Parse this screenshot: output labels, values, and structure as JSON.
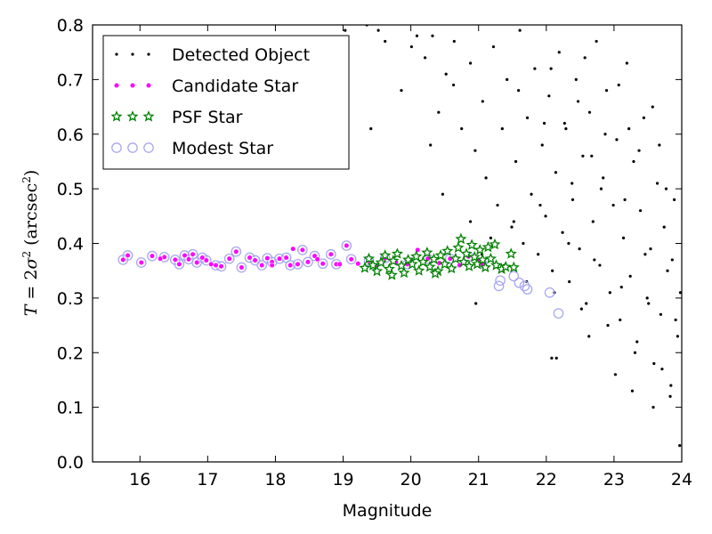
{
  "chart_data": {
    "type": "scatter",
    "xlabel": "Magnitude",
    "ylabel_parts": [
      "T",
      " = 2",
      "σ",
      "2",
      " (arcsec",
      "2",
      ")"
    ],
    "xlim": [
      15.3,
      24.0
    ],
    "ylim": [
      0.0,
      0.8
    ],
    "xticks": [
      16,
      17,
      18,
      19,
      20,
      21,
      22,
      23,
      24
    ],
    "yticks": [
      0.0,
      0.1,
      0.2,
      0.3,
      0.4,
      0.5,
      0.6,
      0.7,
      0.8
    ],
    "grid": false,
    "legend_position": "top-left",
    "legend": [
      {
        "label": "Detected Object",
        "series": "detected"
      },
      {
        "label": "Candidate Star",
        "series": "candidate"
      },
      {
        "label": "PSF Star",
        "series": "psf"
      },
      {
        "label": "Modest Star",
        "series": "modest"
      }
    ],
    "colors": {
      "detected": "#000000",
      "candidate": "#ff00ff",
      "psf": "#008000",
      "modest": "#a8a8f0"
    },
    "series": [
      {
        "name": "Detected Object",
        "key": "detected",
        "points": [
          [
            20.01,
            0.76
          ],
          [
            20.21,
            0.74
          ],
          [
            20.32,
            0.78
          ],
          [
            20.52,
            0.71
          ],
          [
            20.41,
            0.64
          ],
          [
            20.63,
            0.69
          ],
          [
            20.75,
            0.61
          ],
          [
            20.88,
            0.73
          ],
          [
            20.95,
            0.57
          ],
          [
            21.06,
            0.66
          ],
          [
            21.11,
            0.52
          ],
          [
            21.22,
            0.76
          ],
          [
            21.28,
            0.47
          ],
          [
            21.35,
            0.61
          ],
          [
            21.42,
            0.7
          ],
          [
            21.49,
            0.43
          ],
          [
            21.55,
            0.55
          ],
          [
            21.61,
            0.79
          ],
          [
            21.66,
            0.4
          ],
          [
            21.72,
            0.63
          ],
          [
            21.78,
            0.49
          ],
          [
            21.83,
            0.72
          ],
          [
            21.88,
            0.38
          ],
          [
            21.94,
            0.58
          ],
          [
            21.99,
            0.45
          ],
          [
            22.04,
            0.67
          ],
          [
            22.09,
            0.35
          ],
          [
            22.14,
            0.53
          ],
          [
            22.19,
            0.75
          ],
          [
            22.24,
            0.42
          ],
          [
            22.29,
            0.61
          ],
          [
            22.34,
            0.33
          ],
          [
            22.39,
            0.48
          ],
          [
            22.44,
            0.7
          ],
          [
            22.49,
            0.39
          ],
          [
            22.54,
            0.56
          ],
          [
            22.59,
            0.29
          ],
          [
            22.64,
            0.64
          ],
          [
            22.69,
            0.44
          ],
          [
            22.74,
            0.77
          ],
          [
            22.79,
            0.36
          ],
          [
            22.84,
            0.52
          ],
          [
            22.89,
            0.68
          ],
          [
            22.94,
            0.31
          ],
          [
            22.99,
            0.47
          ],
          [
            23.04,
            0.59
          ],
          [
            23.09,
            0.26
          ],
          [
            23.14,
            0.41
          ],
          [
            23.19,
            0.73
          ],
          [
            23.24,
            0.34
          ],
          [
            23.29,
            0.55
          ],
          [
            23.34,
            0.22
          ],
          [
            23.39,
            0.46
          ],
          [
            23.44,
            0.63
          ],
          [
            23.49,
            0.3
          ],
          [
            23.54,
            0.39
          ],
          [
            23.59,
            0.18
          ],
          [
            23.64,
            0.51
          ],
          [
            23.69,
            0.27
          ],
          [
            23.74,
            0.43
          ],
          [
            23.79,
            0.35
          ],
          [
            23.84,
            0.14
          ],
          [
            23.89,
            0.48
          ],
          [
            23.94,
            0.23
          ],
          [
            23.98,
            0.31
          ],
          [
            21.05,
            0.38
          ],
          [
            21.18,
            0.41
          ],
          [
            21.38,
            0.36
          ],
          [
            21.52,
            0.44
          ],
          [
            21.71,
            0.33
          ],
          [
            21.91,
            0.47
          ],
          [
            22.12,
            0.31
          ],
          [
            22.33,
            0.4
          ],
          [
            22.52,
            0.28
          ],
          [
            22.71,
            0.37
          ],
          [
            22.91,
            0.25
          ],
          [
            23.11,
            0.32
          ],
          [
            23.31,
            0.2
          ],
          [
            23.51,
            0.29
          ],
          [
            23.71,
            0.17
          ],
          [
            23.91,
            0.26
          ],
          [
            22.15,
            0.19
          ],
          [
            22.63,
            0.23
          ],
          [
            23.02,
            0.16
          ],
          [
            23.27,
            0.13
          ],
          [
            23.58,
            0.1
          ],
          [
            23.83,
            0.12
          ],
          [
            23.97,
            0.03
          ],
          [
            21.97,
            0.62
          ],
          [
            22.47,
            0.66
          ],
          [
            22.87,
            0.6
          ],
          [
            23.37,
            0.57
          ],
          [
            23.77,
            0.5
          ],
          [
            21.59,
            0.68
          ],
          [
            22.07,
            0.72
          ],
          [
            22.57,
            0.74
          ],
          [
            23.07,
            0.69
          ],
          [
            23.57,
            0.65
          ],
          [
            20.47,
            0.49
          ],
          [
            20.88,
            0.44
          ],
          [
            19.35,
            0.8
          ],
          [
            19.52,
            0.79
          ],
          [
            20.09,
            0.78
          ],
          [
            20.64,
            0.77
          ],
          [
            19.62,
            0.77
          ],
          [
            19.03,
            0.79
          ],
          [
            19.86,
            0.68
          ],
          [
            20.29,
            0.58
          ],
          [
            19.41,
            0.61
          ],
          [
            20.96,
            0.29
          ],
          [
            22.08,
            0.19
          ],
          [
            22.38,
            0.51
          ],
          [
            22.81,
            0.5
          ],
          [
            23.16,
            0.48
          ],
          [
            23.46,
            0.38
          ],
          [
            23.86,
            0.37
          ],
          [
            22.27,
            0.62
          ],
          [
            22.67,
            0.56
          ],
          [
            23.22,
            0.61
          ],
          [
            23.67,
            0.58
          ]
        ]
      },
      {
        "name": "Candidate Star",
        "key": "candidate",
        "points": [
          [
            15.75,
            0.37
          ],
          [
            15.82,
            0.378
          ],
          [
            16.02,
            0.365
          ],
          [
            16.18,
            0.377
          ],
          [
            16.36,
            0.375
          ],
          [
            16.52,
            0.37
          ],
          [
            16.58,
            0.362
          ],
          [
            16.66,
            0.378
          ],
          [
            16.72,
            0.371
          ],
          [
            16.78,
            0.38
          ],
          [
            16.84,
            0.365
          ],
          [
            16.92,
            0.374
          ],
          [
            16.98,
            0.369
          ],
          [
            17.12,
            0.36
          ],
          [
            17.2,
            0.358
          ],
          [
            17.32,
            0.372
          ],
          [
            17.42,
            0.385
          ],
          [
            17.5,
            0.356
          ],
          [
            17.62,
            0.374
          ],
          [
            17.7,
            0.369
          ],
          [
            17.8,
            0.36
          ],
          [
            17.88,
            0.373
          ],
          [
            17.95,
            0.366
          ],
          [
            18.06,
            0.372
          ],
          [
            18.16,
            0.374
          ],
          [
            18.22,
            0.36
          ],
          [
            18.26,
            0.39
          ],
          [
            18.33,
            0.362
          ],
          [
            18.4,
            0.388
          ],
          [
            18.48,
            0.366
          ],
          [
            18.58,
            0.377
          ],
          [
            18.62,
            0.371
          ],
          [
            18.7,
            0.363
          ],
          [
            18.82,
            0.38
          ],
          [
            18.9,
            0.362
          ],
          [
            19.05,
            0.396
          ],
          [
            19.12,
            0.371
          ],
          [
            19.22,
            0.363
          ],
          [
            19.38,
            0.368
          ],
          [
            19.5,
            0.36
          ],
          [
            19.62,
            0.373
          ],
          [
            19.78,
            0.366
          ],
          [
            19.95,
            0.362
          ],
          [
            20.1,
            0.388
          ],
          [
            20.25,
            0.372
          ],
          [
            20.42,
            0.364
          ],
          [
            20.58,
            0.372
          ],
          [
            20.72,
            0.36
          ],
          [
            20.85,
            0.376
          ],
          [
            21.0,
            0.368
          ],
          [
            21.05,
            0.363
          ],
          [
            16.3,
            0.372
          ],
          [
            17.05,
            0.362
          ],
          [
            17.95,
            0.36
          ],
          [
            18.95,
            0.362
          ]
        ]
      },
      {
        "name": "PSF Star",
        "key": "psf",
        "points": [
          [
            19.32,
            0.355
          ],
          [
            19.38,
            0.372
          ],
          [
            19.44,
            0.36
          ],
          [
            19.5,
            0.349
          ],
          [
            19.56,
            0.365
          ],
          [
            19.62,
            0.378
          ],
          [
            19.68,
            0.353
          ],
          [
            19.74,
            0.368
          ],
          [
            19.8,
            0.381
          ],
          [
            19.86,
            0.359
          ],
          [
            19.9,
            0.346
          ],
          [
            19.96,
            0.37
          ],
          [
            20.02,
            0.362
          ],
          [
            20.08,
            0.376
          ],
          [
            20.12,
            0.35
          ],
          [
            20.18,
            0.366
          ],
          [
            20.24,
            0.383
          ],
          [
            20.28,
            0.357
          ],
          [
            20.34,
            0.371
          ],
          [
            20.4,
            0.349
          ],
          [
            20.44,
            0.378
          ],
          [
            20.5,
            0.362
          ],
          [
            20.54,
            0.386
          ],
          [
            20.6,
            0.354
          ],
          [
            20.66,
            0.372
          ],
          [
            20.7,
            0.392
          ],
          [
            20.74,
            0.408
          ],
          [
            20.78,
            0.366
          ],
          [
            20.82,
            0.381
          ],
          [
            20.86,
            0.358
          ],
          [
            20.9,
            0.397
          ],
          [
            20.94,
            0.375
          ],
          [
            20.98,
            0.362
          ],
          [
            21.02,
            0.388
          ],
          [
            21.06,
            0.37
          ],
          [
            21.1,
            0.356
          ],
          [
            21.14,
            0.393
          ],
          [
            21.18,
            0.372
          ],
          [
            21.26,
            0.36
          ],
          [
            21.34,
            0.353
          ],
          [
            21.4,
            0.357
          ],
          [
            21.48,
            0.381
          ],
          [
            21.52,
            0.356
          ],
          [
            20.36,
            0.345
          ],
          [
            19.72,
            0.342
          ],
          [
            21.24,
            0.398
          ]
        ]
      },
      {
        "name": "Modest Star",
        "key": "modest",
        "points": [
          [
            15.75,
            0.37
          ],
          [
            15.82,
            0.378
          ],
          [
            16.02,
            0.365
          ],
          [
            16.18,
            0.377
          ],
          [
            16.36,
            0.375
          ],
          [
            16.52,
            0.37
          ],
          [
            16.58,
            0.362
          ],
          [
            16.66,
            0.378
          ],
          [
            16.72,
            0.371
          ],
          [
            16.78,
            0.38
          ],
          [
            16.84,
            0.365
          ],
          [
            16.92,
            0.374
          ],
          [
            16.98,
            0.369
          ],
          [
            17.12,
            0.36
          ],
          [
            17.2,
            0.358
          ],
          [
            17.32,
            0.372
          ],
          [
            17.42,
            0.385
          ],
          [
            17.5,
            0.356
          ],
          [
            17.62,
            0.374
          ],
          [
            17.7,
            0.369
          ],
          [
            17.8,
            0.36
          ],
          [
            17.88,
            0.373
          ],
          [
            17.95,
            0.366
          ],
          [
            18.06,
            0.372
          ],
          [
            18.16,
            0.374
          ],
          [
            18.22,
            0.36
          ],
          [
            18.33,
            0.362
          ],
          [
            18.4,
            0.388
          ],
          [
            18.48,
            0.366
          ],
          [
            18.58,
            0.377
          ],
          [
            18.7,
            0.363
          ],
          [
            18.82,
            0.38
          ],
          [
            18.9,
            0.362
          ],
          [
            19.05,
            0.396
          ],
          [
            19.12,
            0.371
          ],
          [
            19.38,
            0.368
          ],
          [
            19.62,
            0.373
          ],
          [
            19.95,
            0.362
          ],
          [
            20.25,
            0.372
          ],
          [
            20.58,
            0.372
          ],
          [
            20.85,
            0.376
          ],
          [
            21.05,
            0.363
          ],
          [
            21.3,
            0.322
          ],
          [
            21.32,
            0.332
          ],
          [
            21.52,
            0.34
          ],
          [
            21.6,
            0.328
          ],
          [
            21.68,
            0.322
          ],
          [
            21.72,
            0.316
          ],
          [
            22.05,
            0.31
          ],
          [
            22.18,
            0.272
          ]
        ]
      }
    ]
  }
}
